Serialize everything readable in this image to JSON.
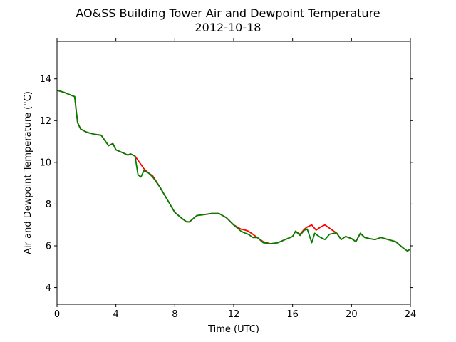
{
  "chart_data": {
    "type": "line",
    "title": "AO&SS Building Tower Air and Dewpoint Temperature",
    "subtitle": "2012-10-18",
    "xlabel": "Time (UTC)",
    "ylabel": "Air and Dewpoint Temperature (°C)",
    "xlim": [
      0,
      24
    ],
    "ylim": [
      3.2,
      15.8
    ],
    "xticks": [
      0,
      4,
      8,
      12,
      16,
      20,
      24
    ],
    "yticks": [
      4,
      6,
      8,
      10,
      12,
      14
    ],
    "grid": false,
    "series": [
      {
        "color": "#ff0000",
        "x": [
          0,
          0.5,
          1.0,
          1.2,
          1.3,
          1.4,
          1.6,
          2.0,
          2.5,
          3.0,
          3.5,
          3.8,
          4.0,
          4.5,
          4.8,
          5.0,
          5.3,
          5.6,
          5.9,
          6.2,
          6.5,
          7.0,
          7.5,
          8.0,
          8.5,
          8.8,
          9.0,
          9.5,
          10.0,
          10.5,
          11.0,
          11.5,
          12.0,
          12.5,
          12.8,
          13.0,
          13.3,
          13.6,
          14.0,
          14.5,
          15.0,
          15.5,
          16.0,
          16.2,
          16.5,
          16.8,
          17.0,
          17.3,
          17.6,
          17.9,
          18.2,
          18.5,
          18.8,
          19.0,
          19.3,
          19.6,
          20.0,
          20.3,
          20.6,
          20.9,
          21.2,
          21.6,
          22.0,
          22.5,
          23.0,
          23.5,
          23.8,
          24.0
        ],
        "y": [
          13.45,
          13.35,
          13.2,
          13.15,
          12.5,
          11.9,
          11.6,
          11.45,
          11.35,
          11.3,
          10.8,
          10.9,
          10.6,
          10.45,
          10.35,
          10.4,
          10.3,
          10.0,
          9.7,
          9.5,
          9.35,
          8.8,
          8.2,
          7.6,
          7.3,
          7.15,
          7.15,
          7.45,
          7.5,
          7.55,
          7.55,
          7.35,
          7.0,
          6.8,
          6.75,
          6.7,
          6.55,
          6.4,
          6.2,
          6.1,
          6.15,
          6.3,
          6.45,
          6.7,
          6.55,
          6.8,
          6.9,
          7.0,
          6.75,
          6.9,
          7.0,
          6.85,
          6.7,
          6.6,
          6.3,
          6.45,
          6.35,
          6.2,
          6.6,
          6.4,
          6.35,
          6.3,
          6.4,
          6.3,
          6.2,
          5.9,
          5.75,
          5.85
        ]
      },
      {
        "color": "#008000",
        "x": [
          0,
          0.5,
          1.0,
          1.2,
          1.3,
          1.4,
          1.6,
          2.0,
          2.5,
          3.0,
          3.5,
          3.8,
          4.0,
          4.5,
          4.8,
          5.0,
          5.3,
          5.5,
          5.7,
          5.9,
          6.2,
          6.5,
          7.0,
          7.5,
          8.0,
          8.5,
          8.8,
          9.0,
          9.5,
          10.0,
          10.5,
          11.0,
          11.5,
          12.0,
          12.5,
          12.8,
          13.0,
          13.3,
          13.6,
          14.0,
          14.5,
          15.0,
          15.5,
          16.0,
          16.2,
          16.5,
          16.8,
          17.0,
          17.3,
          17.5,
          17.7,
          17.9,
          18.2,
          18.5,
          18.8,
          19.0,
          19.3,
          19.6,
          20.0,
          20.3,
          20.6,
          20.9,
          21.2,
          21.6,
          22.0,
          22.5,
          23.0,
          23.5,
          23.8,
          24.0
        ],
        "y": [
          13.45,
          13.35,
          13.2,
          13.15,
          12.5,
          11.9,
          11.6,
          11.45,
          11.35,
          11.3,
          10.8,
          10.9,
          10.6,
          10.45,
          10.35,
          10.4,
          10.3,
          9.4,
          9.3,
          9.6,
          9.5,
          9.3,
          8.8,
          8.2,
          7.6,
          7.3,
          7.15,
          7.15,
          7.45,
          7.5,
          7.55,
          7.55,
          7.35,
          7.0,
          6.7,
          6.6,
          6.55,
          6.4,
          6.4,
          6.15,
          6.1,
          6.15,
          6.3,
          6.45,
          6.7,
          6.5,
          6.75,
          6.8,
          6.15,
          6.6,
          6.5,
          6.4,
          6.3,
          6.55,
          6.6,
          6.6,
          6.3,
          6.45,
          6.35,
          6.2,
          6.6,
          6.4,
          6.35,
          6.3,
          6.4,
          6.3,
          6.2,
          5.9,
          5.75,
          5.85
        ]
      }
    ]
  }
}
